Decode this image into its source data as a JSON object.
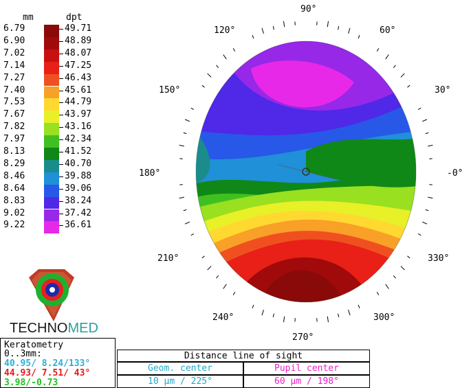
{
  "scale": {
    "mm_header": "mm",
    "dpt_header": "dpt",
    "rows": [
      {
        "mm": "6.79",
        "dpt": "49.71",
        "color": "#8a0a0a"
      },
      {
        "mm": "6.90",
        "dpt": "48.89",
        "color": "#a00a0a"
      },
      {
        "mm": "7.02",
        "dpt": "48.07",
        "color": "#c81010"
      },
      {
        "mm": "7.14",
        "dpt": "47.25",
        "color": "#e82018"
      },
      {
        "mm": "7.27",
        "dpt": "46.43",
        "color": "#f05020"
      },
      {
        "mm": "7.40",
        "dpt": "45.61",
        "color": "#f8a028"
      },
      {
        "mm": "7.53",
        "dpt": "44.79",
        "color": "#ffd830"
      },
      {
        "mm": "7.67",
        "dpt": "43.97",
        "color": "#e8f028"
      },
      {
        "mm": "7.82",
        "dpt": "43.16",
        "color": "#98e020"
      },
      {
        "mm": "7.97",
        "dpt": "42.34",
        "color": "#40c020"
      },
      {
        "mm": "8.13",
        "dpt": "41.52",
        "color": "#108818"
      },
      {
        "mm": "8.29",
        "dpt": "40.70",
        "color": "#1a8c8c"
      },
      {
        "mm": "8.46",
        "dpt": "39.88",
        "color": "#2090d8"
      },
      {
        "mm": "8.64",
        "dpt": "39.06",
        "color": "#2858e8"
      },
      {
        "mm": "8.83",
        "dpt": "38.24",
        "color": "#5028e8"
      },
      {
        "mm": "9.02",
        "dpt": "37.42",
        "color": "#9828e8"
      },
      {
        "mm": "9.22",
        "dpt": "36.61",
        "color": "#e828e8"
      }
    ]
  },
  "angles": {
    "a90": "90°",
    "a60": "60°",
    "a120": "120°",
    "a30": "30°",
    "a150": "150°",
    "a0": "-0°",
    "a180": "180°",
    "a210": "210°",
    "a330": "330°",
    "a240": "240°",
    "a300": "300°",
    "a270": "270°"
  },
  "logo": {
    "brand_left": "TECHNO",
    "brand_right": "MED",
    "color_left": "#1a1a1a",
    "color_right": "#2aa09a"
  },
  "keratometry": {
    "title": "Keratometry",
    "zone": "0..3mm:",
    "line1": "40.95/ 8.24/133°",
    "line2": "44.93/ 7.51/ 43°",
    "line3": "3.98/-0.73",
    "color1": "#28b0d8",
    "color2": "#e81818",
    "color3": "#20c020"
  },
  "distance": {
    "title": "Distance line of sight",
    "geom_label": "Geom. center",
    "geom_value": "10 µm / 225°",
    "pupil_label": "Pupil center",
    "pupil_value": "60 µm / 198°",
    "geom_color": "#20a8c8",
    "pupil_color": "#e820c8"
  }
}
